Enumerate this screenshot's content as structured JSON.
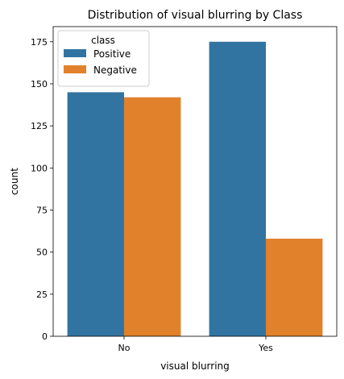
{
  "chart_data": {
    "type": "bar",
    "title": "Distribution of visual blurring by Class",
    "xlabel": "visual blurring",
    "ylabel": "count",
    "categories": [
      "No",
      "Yes"
    ],
    "series": [
      {
        "name": "Positive",
        "values": [
          145,
          175
        ],
        "color": "#3274a1"
      },
      {
        "name": "Negative",
        "values": [
          142,
          58
        ],
        "color": "#e1812c"
      }
    ],
    "ylim": [
      0,
      184
    ],
    "yticks": [
      0,
      25,
      50,
      75,
      100,
      125,
      150,
      175
    ],
    "legend": {
      "title": "class",
      "placement": "top-left"
    },
    "grid": false
  }
}
